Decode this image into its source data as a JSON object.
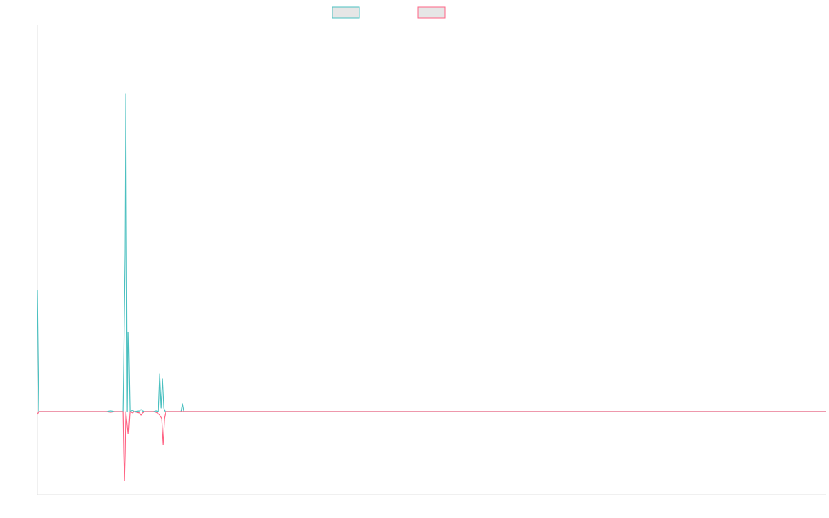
{
  "chart_data": {
    "type": "line",
    "title": "",
    "xlabel": "",
    "ylabel": "",
    "grid": false,
    "legend_position": "top-center",
    "ylim": [
      -120,
      560
    ],
    "x": [
      0,
      1,
      2,
      3,
      4,
      5,
      6,
      7,
      8,
      9,
      10,
      11,
      12,
      13,
      14,
      15,
      16,
      17,
      18,
      19,
      20,
      21,
      22,
      23,
      24,
      25,
      26,
      27,
      28,
      29,
      30,
      31,
      32,
      33,
      34,
      35,
      36,
      37,
      38,
      39,
      40,
      41,
      42,
      43,
      44,
      45,
      46,
      47,
      48,
      49,
      50,
      51,
      52,
      53,
      54,
      55,
      56,
      57,
      58,
      59,
      60,
      61,
      62,
      63,
      64,
      65,
      66,
      67,
      68,
      69,
      70,
      71,
      72,
      73,
      74,
      75,
      76,
      77,
      78,
      79,
      80,
      81,
      82,
      83,
      84,
      85,
      86,
      87,
      88,
      89,
      90,
      91,
      92,
      93,
      94,
      95,
      96,
      97,
      98,
      99,
      100,
      101,
      102,
      103,
      104,
      105,
      106,
      107,
      108,
      109,
      110,
      111,
      112,
      113,
      114,
      115,
      116,
      117,
      118,
      119,
      120,
      121,
      122,
      123,
      124,
      125,
      126,
      127,
      128,
      129,
      130,
      131,
      132,
      133,
      134,
      135,
      136,
      137,
      138,
      139,
      140,
      141,
      142,
      143,
      144,
      145,
      146,
      147,
      148,
      149,
      150,
      151,
      152,
      153,
      154,
      155,
      156,
      157,
      158,
      159,
      160,
      161,
      162,
      163,
      164,
      165,
      166,
      167,
      168,
      169,
      170,
      171,
      172,
      173,
      174,
      175,
      176,
      177,
      178,
      179,
      180,
      181,
      182,
      183,
      184,
      185,
      186,
      187,
      188,
      189,
      190,
      191,
      192,
      193,
      194,
      195,
      196,
      197,
      198,
      199,
      200,
      201,
      202,
      203,
      204,
      205,
      206,
      207,
      208,
      209,
      210,
      211,
      212,
      213,
      214,
      215,
      216,
      217,
      218,
      219,
      220,
      221,
      222,
      223,
      224,
      225,
      226,
      227,
      228,
      229,
      230,
      231,
      232,
      233,
      234,
      235,
      236,
      237,
      238,
      239,
      240,
      241,
      242,
      243,
      244,
      245,
      246,
      247,
      248,
      249,
      250,
      251,
      252,
      253,
      254,
      255,
      256,
      257,
      258,
      259,
      260,
      261,
      262,
      263,
      264,
      265,
      266,
      267,
      268,
      269,
      270,
      271,
      272,
      273,
      274,
      275,
      276,
      277,
      278,
      279,
      280,
      281,
      282,
      283,
      284,
      285,
      286,
      287,
      288,
      289,
      290,
      291,
      292,
      293,
      294,
      295,
      296,
      297,
      298,
      299,
      300,
      301,
      302,
      303,
      304,
      305,
      306,
      307,
      308,
      309,
      310,
      311,
      312,
      313,
      314,
      315,
      316,
      317,
      318,
      319,
      320,
      321,
      322,
      323,
      324,
      325,
      326,
      327,
      328,
      329,
      330,
      331,
      332,
      333,
      334,
      335,
      336,
      337,
      338,
      339,
      340,
      341,
      342,
      343,
      344,
      345,
      346,
      347,
      348,
      349,
      350,
      351,
      352,
      353,
      354,
      355,
      356,
      357,
      358,
      359,
      360,
      361,
      362,
      363,
      364,
      365,
      366,
      367,
      368,
      369,
      370,
      371,
      372,
      373,
      374,
      375,
      376,
      377,
      378,
      379,
      380,
      381,
      382,
      383,
      384,
      385,
      386,
      387,
      388,
      389,
      390,
      391,
      392,
      393,
      394,
      395,
      396,
      397,
      398,
      399,
      400,
      401,
      402,
      403,
      404,
      405,
      406,
      407,
      408,
      409,
      410,
      411,
      412,
      413,
      414,
      415,
      416,
      417,
      418,
      419,
      420,
      421,
      422,
      423,
      424,
      425,
      426,
      427,
      428,
      429,
      430,
      431,
      432,
      433,
      434,
      435,
      436,
      437,
      438,
      439,
      440,
      441,
      442,
      443,
      444,
      445,
      446,
      447,
      448,
      449,
      450,
      451,
      452,
      453,
      454,
      455,
      456,
      457,
      458,
      459,
      460,
      461,
      462,
      463,
      464,
      465,
      466,
      467,
      468,
      469,
      470,
      471,
      472,
      473,
      474,
      475,
      476,
      477,
      478,
      479,
      480,
      481,
      482,
      483,
      484,
      485,
      486,
      487,
      488,
      489,
      490,
      491,
      492,
      493,
      494,
      495,
      496,
      497,
      498,
      499,
      500,
      501,
      502,
      503,
      504,
      505,
      506,
      507,
      508,
      509,
      510,
      511,
      512,
      513,
      514,
      515,
      516,
      517,
      518,
      519,
      520,
      521,
      522,
      523,
      524,
      525,
      526,
      527,
      528,
      529,
      530,
      531,
      532,
      533,
      534,
      535,
      536,
      537,
      538,
      539,
      540,
      541,
      542,
      543,
      544,
      545,
      546,
      547,
      548,
      549,
      550,
      551,
      552,
      553,
      554,
      555,
      556,
      557,
      558,
      559,
      560,
      561,
      562,
      563,
      564,
      565,
      566,
      567,
      568,
      569,
      570,
      571,
      572,
      573,
      574,
      575,
      576,
      577,
      578,
      579,
      580,
      581,
      582,
      583,
      584,
      585,
      586,
      587,
      588,
      589,
      590,
      591,
      592,
      593,
      594,
      595,
      596,
      597,
      598,
      599,
      600,
      601,
      602,
      603,
      604,
      605,
      606,
      607,
      608,
      609,
      610,
      611,
      612,
      613,
      614,
      615,
      616,
      617,
      618,
      619,
      620,
      621,
      622,
      623,
      624,
      625,
      626,
      627,
      628,
      629,
      630,
      631,
      632,
      633,
      634,
      635,
      636,
      637,
      638,
      639,
      640,
      641,
      642,
      643,
      644,
      645,
      646,
      647,
      648,
      649,
      650,
      651,
      652,
      653,
      654,
      655,
      656,
      657,
      658,
      659,
      660,
      661,
      662,
      663,
      664,
      665,
      666,
      667,
      668,
      669,
      670,
      671,
      672,
      673,
      674,
      675,
      676,
      677,
      678,
      679,
      680,
      681,
      682,
      683,
      684,
      685,
      686,
      687,
      688,
      689,
      690,
      691,
      692,
      693,
      694,
      695,
      696,
      697,
      698,
      699,
      700,
      701,
      702,
      703,
      704,
      705,
      706,
      707,
      708,
      709,
      710,
      711,
      712,
      713,
      714,
      715,
      716,
      717,
      718,
      719,
      720,
      721,
      722,
      723,
      724,
      725,
      726,
      727,
      728,
      729,
      730,
      731,
      732,
      733,
      734,
      735,
      736,
      737,
      738,
      739,
      740,
      741,
      742,
      743,
      744,
      745,
      746,
      747,
      748,
      749,
      750,
      751,
      752,
      753,
      754,
      755,
      756,
      757,
      758,
      759,
      760,
      761,
      762,
      763,
      764,
      765,
      766,
      767,
      768,
      769,
      770,
      771,
      772,
      773,
      774,
      775,
      776,
      777,
      778,
      779,
      780,
      781,
      782,
      783,
      784,
      785,
      786,
      787,
      788,
      789,
      790,
      791,
      792,
      793,
      794,
      795,
      796,
      797,
      798,
      799,
      800,
      801,
      802,
      803,
      804,
      805,
      806,
      807,
      808,
      809,
      810,
      811,
      812,
      813,
      814,
      815,
      816,
      817,
      818,
      819,
      820,
      821,
      822,
      823,
      824,
      825,
      826,
      827,
      828,
      829,
      830,
      831,
      832,
      833,
      834,
      835,
      836,
      837,
      838,
      839,
      840,
      841,
      842,
      843,
      844,
      845,
      846,
      847,
      848,
      849,
      850,
      851,
      852,
      853,
      854,
      855,
      856,
      857,
      858,
      859,
      860,
      861,
      862,
      863,
      864,
      865,
      866,
      867,
      868,
      869,
      870,
      871,
      872,
      873,
      874,
      875,
      876,
      877,
      878,
      879,
      880,
      881,
      882,
      883,
      884,
      885,
      886,
      887,
      888,
      889,
      890,
      891,
      892,
      893,
      894,
      895,
      896,
      897,
      898,
      899,
      900,
      901,
      902,
      903,
      904,
      905,
      906,
      907,
      908,
      909,
      910,
      911,
      912,
      913,
      914,
      915,
      916,
      917,
      918,
      919,
      920,
      921,
      922,
      923,
      924,
      925,
      926,
      927,
      928,
      929,
      930,
      931,
      932,
      933,
      934,
      935,
      936,
      937,
      938,
      939,
      940,
      941,
      942,
      943,
      944,
      945,
      946,
      947,
      948,
      949,
      950,
      951,
      952,
      953,
      954,
      955,
      956,
      957,
      958,
      959,
      960,
      961,
      962,
      963,
      964,
      965,
      966,
      967,
      968,
      969,
      970,
      971,
      972,
      973,
      974,
      975,
      976,
      977,
      978,
      979,
      980,
      981,
      982,
      983,
      984,
      985,
      986,
      987,
      988,
      989,
      990,
      991,
      992,
      993,
      994,
      995,
      996,
      997,
      998,
      999,
      1000,
      1001,
      1002,
      1003,
      1004,
      1005,
      1006,
      1007,
      1008,
      1009,
      1010,
      1011,
      1012,
      1013,
      1014,
      1015,
      1016,
      1017,
      1018,
      1019,
      1020,
      1021,
      1022,
      1023,
      1024,
      1025,
      1026,
      1027,
      1028,
      1029,
      1030,
      1031,
      1032,
      1033,
      1034,
      1035,
      1036,
      1037,
      1038,
      1039,
      1040,
      1041,
      1042,
      1043,
      1044,
      1045,
      1046,
      1047,
      1048,
      1049,
      1050,
      1051,
      1052,
      1053,
      1054,
      1055,
      1056,
      1057,
      1058,
      1059,
      1060,
      1061,
      1062,
      1063,
      1064,
      1065,
      1066,
      1067,
      1068,
      1069,
      1070,
      1071,
      1072,
      1073,
      1074,
      1075,
      1076,
      1077,
      1078,
      1079,
      1080,
      1081,
      1082,
      1083,
      1084,
      1085,
      1086,
      1087,
      1088,
      1089,
      1090,
      1091,
      1092,
      1093,
      1094,
      1095,
      1096,
      1097,
      1098,
      1099,
      1100,
      1101,
      1102,
      1103,
      1104,
      1105,
      1106,
      1107,
      1108,
      1109,
      1110,
      1111,
      1112,
      1113,
      1114,
      1115,
      1116,
      1117,
      1118,
      1119,
      1120,
      1121,
      1122,
      1123,
      1124,
      1125,
      1126,
      1127,
      1128,
      1129,
      1130,
      1131,
      1132,
      1133,
      1134,
      1135,
      1136,
      1137,
      1138,
      1139,
      1140
    ],
    "series": [
      {
        "color": "#4bc0c0",
        "fill": "#e6e6e6",
        "points": [
          [
            0,
            176
          ],
          [
            2,
            0
          ],
          [
            100,
            0
          ],
          [
            106,
            1
          ],
          [
            112,
            0
          ],
          [
            124,
            0
          ],
          [
            125,
            70
          ],
          [
            127,
            230
          ],
          [
            128,
            460
          ],
          [
            129,
            230
          ],
          [
            130,
            0
          ],
          [
            131,
            115
          ],
          [
            132,
            115
          ],
          [
            134,
            0
          ],
          [
            138,
            2
          ],
          [
            140,
            0
          ],
          [
            148,
            1
          ],
          [
            150,
            3
          ],
          [
            152,
            1
          ],
          [
            155,
            0
          ],
          [
            168,
            0
          ],
          [
            172,
            1
          ],
          [
            175,
            0
          ],
          [
            177,
            55
          ],
          [
            179,
            5
          ],
          [
            181,
            47
          ],
          [
            183,
            5
          ],
          [
            185,
            0
          ],
          [
            208,
            0
          ],
          [
            210,
            11
          ],
          [
            212,
            0
          ],
          [
            1140,
            0
          ]
        ]
      },
      {
        "color": "#ff6384",
        "fill": "#e6e6e6",
        "points": [
          [
            0,
            -4
          ],
          [
            2,
            0
          ],
          [
            100,
            0
          ],
          [
            106,
            -1
          ],
          [
            112,
            0
          ],
          [
            124,
            0
          ],
          [
            125,
            -60
          ],
          [
            126,
            -100
          ],
          [
            127,
            -60
          ],
          [
            128,
            0
          ],
          [
            131,
            -32
          ],
          [
            132,
            -32
          ],
          [
            134,
            0
          ],
          [
            138,
            -2
          ],
          [
            140,
            0
          ],
          [
            148,
            -2
          ],
          [
            150,
            -5
          ],
          [
            152,
            -2
          ],
          [
            155,
            0
          ],
          [
            168,
            0
          ],
          [
            172,
            -1
          ],
          [
            175,
            -3
          ],
          [
            177,
            -5
          ],
          [
            180,
            -10
          ],
          [
            182,
            -48
          ],
          [
            184,
            -10
          ],
          [
            186,
            0
          ],
          [
            1140,
            0
          ]
        ]
      }
    ]
  }
}
